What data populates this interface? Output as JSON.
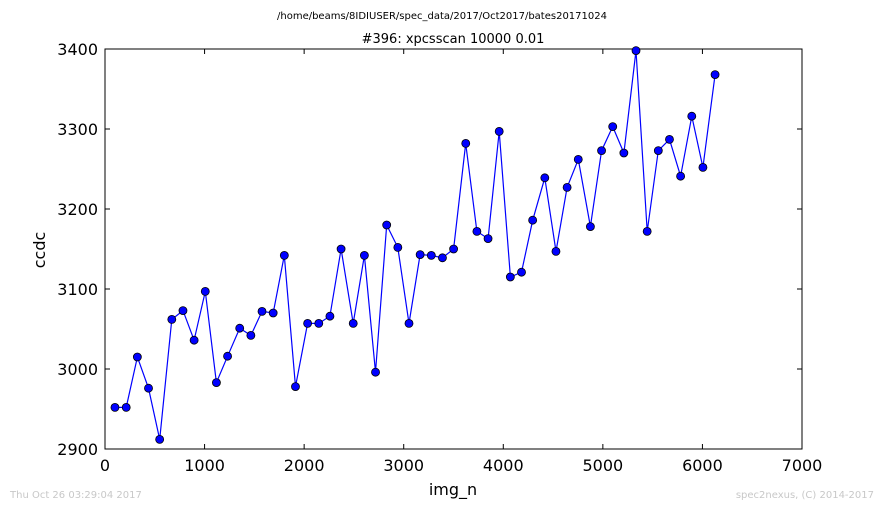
{
  "header": {
    "path": "/home/beams/8IDIUSER/spec_data/2017/Oct2017/bates20171024"
  },
  "chart_data": {
    "type": "line",
    "title": "#396: xpcsscan 10000 0.01",
    "xlabel": "img_n",
    "ylabel": "ccdc",
    "xlim": [
      0,
      7000
    ],
    "ylim": [
      2900,
      3400
    ],
    "xticks": [
      0,
      1000,
      2000,
      3000,
      4000,
      5000,
      6000,
      7000
    ],
    "yticks": [
      2900,
      3000,
      3100,
      3200,
      3300,
      3400
    ],
    "grid": false,
    "marker": "circle",
    "color": "#0000ff",
    "series": [
      {
        "x": [
          100,
          213,
          325,
          437,
          549,
          671,
          783,
          895,
          1007,
          1119,
          1231,
          1353,
          1465,
          1577,
          1689,
          1801,
          1913,
          2035,
          2147,
          2259,
          2371,
          2493,
          2605,
          2717,
          2829,
          2941,
          3053,
          3165,
          3277,
          3389,
          3501,
          3623,
          3735,
          3847,
          3959,
          4071,
          4183,
          4295,
          4417,
          4529,
          4641,
          4753,
          4875,
          4987,
          5099,
          5211,
          5333,
          5445,
          5557,
          5669,
          5781,
          5893,
          6005,
          6127
        ],
        "y": [
          2952,
          2952,
          3015,
          2976,
          2912,
          3062,
          3073,
          3036,
          3097,
          2983,
          3016,
          3051,
          3042,
          3072,
          3070,
          3142,
          2978,
          3057,
          3057,
          3066,
          3150,
          3057,
          3142,
          2996,
          3180,
          3152,
          3057,
          3143,
          3142,
          3139,
          3150,
          3282,
          3172,
          3163,
          3297,
          3115,
          3121,
          3186,
          3239,
          3147,
          3227,
          3262,
          3178,
          3273,
          3303,
          3270,
          3398,
          3172,
          3273,
          3287,
          3241,
          3316,
          3252,
          3368
        ]
      }
    ]
  },
  "footer": {
    "timestamp": "Thu Oct 26 03:29:04 2017",
    "credit": "spec2nexus, (C) 2014-2017"
  }
}
